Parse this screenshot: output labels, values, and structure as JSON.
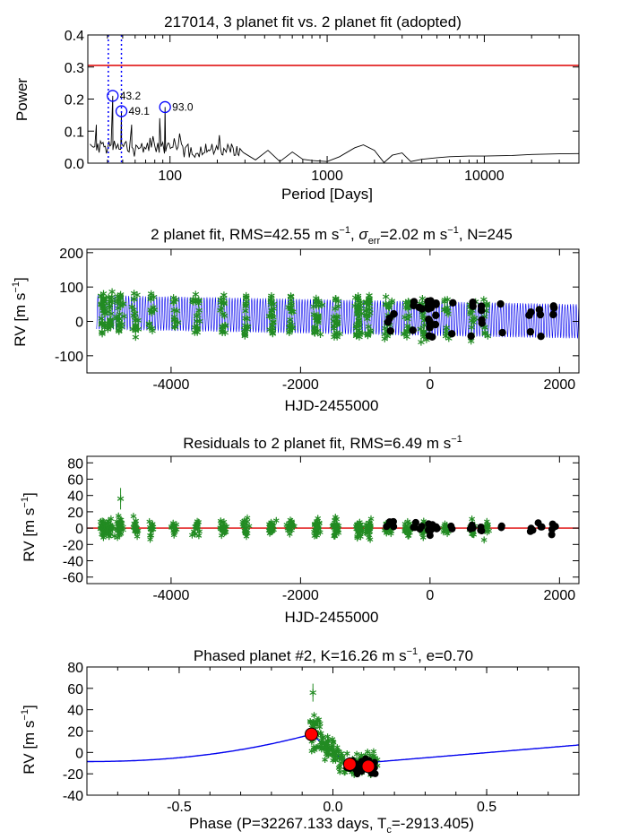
{
  "chart_data": [
    {
      "type": "line",
      "id": "periodogram",
      "title": "217014,  3 planet fit vs. 2 planet fit (adopted)",
      "xlabel": "Period [Days]",
      "ylabel": "Power",
      "xscale": "log",
      "xlim": [
        30,
        40000
      ],
      "ylim": [
        0,
        0.4
      ],
      "xticks": [
        100,
        1000,
        10000
      ],
      "xtick_labels": [
        "100",
        "1000",
        "10000"
      ],
      "yticks": [
        0.0,
        0.1,
        0.2,
        0.3,
        0.4
      ],
      "ytick_labels": [
        "0.0",
        "0.1",
        "0.2",
        "0.3",
        "0.4"
      ],
      "fap_level": 0.305,
      "highlight_periods": [
        40.5,
        49.1
      ],
      "peaks": [
        {
          "period": 43.2,
          "power": 0.21,
          "label": "43.2"
        },
        {
          "period": 49.1,
          "power": 0.162,
          "label": "49.1"
        },
        {
          "period": 93.0,
          "power": 0.175,
          "label": "93.0"
        }
      ],
      "series_long": {
        "x": [
          300,
          350,
          420,
          500,
          600,
          700,
          800,
          1000,
          1200,
          1500,
          1700,
          2000,
          2300,
          2600,
          3000,
          3400,
          4000,
          5000,
          6000,
          8000,
          10000,
          15000,
          20000,
          30000,
          40000
        ],
        "y": [
          0.03,
          0.01,
          0.04,
          0.005,
          0.035,
          0.012,
          0.008,
          0.005,
          0.02,
          0.048,
          0.057,
          0.04,
          0.002,
          0.025,
          0.032,
          0.005,
          0.012,
          0.017,
          0.02,
          0.022,
          0.022,
          0.024,
          0.027,
          0.029,
          0.03
        ]
      },
      "colors": {
        "line": "#000000",
        "fap": "#dd0000",
        "marker": "#0000ff"
      }
    },
    {
      "type": "scatter",
      "id": "rv_fit",
      "title_main": "2 planet fit, RMS=42.55 m s",
      "title_sup1": "−1",
      "title_mid": ", ",
      "title_sigma": "σ",
      "title_sub": "err",
      "title_mid2": "=2.02 m s",
      "title_sup2": "−1",
      "title_end": ", N=245",
      "xlabel": "HJD-2455000",
      "ylabel": "RV [m s",
      "ylabel_sup": "−1",
      "ylabel_end": "]",
      "xlim": [
        -5300,
        2300
      ],
      "ylim": [
        -150,
        210
      ],
      "xticks": [
        -4000,
        -2000,
        0,
        2000
      ],
      "xtick_labels": [
        "-4000",
        "-2000",
        "0",
        "2000"
      ],
      "yticks": [
        -100,
        0,
        100,
        200
      ],
      "ytick_labels": [
        "-100",
        "0",
        "100",
        "200"
      ],
      "model": {
        "period_days": 43.2,
        "amplitude": 50,
        "trend_start": 27,
        "trend_end": 0
      },
      "colors": {
        "model": "#0000ee",
        "old": "#228b22",
        "new": "#000000"
      }
    },
    {
      "type": "scatter",
      "id": "residuals",
      "title_main": "Residuals to 2 planet fit, RMS=6.49 m s",
      "title_sup": "−1",
      "xlabel": "HJD-2455000",
      "ylabel": "RV [m s",
      "ylabel_sup": "−1",
      "ylabel_end": "]",
      "xlim": [
        -5300,
        2300
      ],
      "ylim": [
        -68,
        88
      ],
      "xticks": [
        -4000,
        -2000,
        0,
        2000
      ],
      "xtick_labels": [
        "-4000",
        "-2000",
        "0",
        "2000"
      ],
      "yticks": [
        -60,
        -40,
        -20,
        0,
        20,
        40,
        60,
        80
      ],
      "ytick_labels": [
        "-60",
        "-40",
        "-20",
        "0",
        "20",
        "40",
        "60",
        "80"
      ],
      "colors": {
        "zero": "#dd0000",
        "old": "#228b22",
        "new": "#000000"
      }
    },
    {
      "type": "scatter",
      "id": "phased",
      "title_main": "Phased planet #2, K=16.26 m s",
      "title_sup": "−1",
      "title_end": ", e=0.70",
      "xlabel_main": "Phase (P=32267.133 days, T",
      "xlabel_sub": "c",
      "xlabel_end": "=-2913.405)",
      "ylabel": "RV [m s",
      "ylabel_sup": "−1",
      "ylabel_end": "]",
      "xlim": [
        -0.8,
        0.8
      ],
      "ylim": [
        -40,
        80
      ],
      "xticks": [
        -0.5,
        0.0,
        0.5
      ],
      "xtick_labels": [
        "-0.5",
        "0.0",
        "0.5"
      ],
      "yticks": [
        -40,
        -20,
        0,
        20,
        40,
        60,
        80
      ],
      "ytick_labels": [
        "-40",
        "-20",
        "0",
        "20",
        "40",
        "60",
        "80"
      ],
      "binned": [
        {
          "phase": -0.07,
          "rv": 17
        },
        {
          "phase": 0.055,
          "rv": -11
        },
        {
          "phase": 0.115,
          "rv": -13
        }
      ],
      "colors": {
        "model": "#0000ee",
        "old": "#228b22",
        "new": "#000000",
        "bin": "#ff0000"
      }
    }
  ]
}
